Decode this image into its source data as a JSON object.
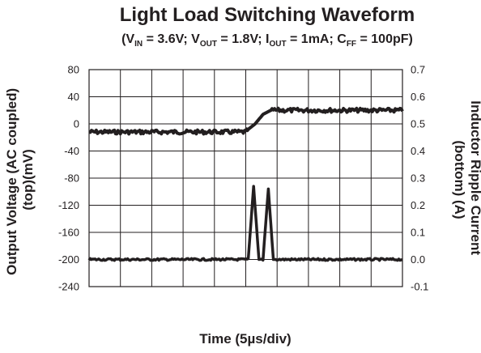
{
  "chart_data": {
    "type": "line",
    "title": "Light Load Switching Waveform",
    "subtitle": {
      "open": "(V",
      "vin_sub": "IN",
      "vin_val": " = 3.6V; V",
      "vout_sub": "OUT",
      "vout_val": " = 1.8V; I",
      "iout_sub": "OUT",
      "iout_val": " = 1mA; C",
      "cff_sub": "FF",
      "cff_val": " = 100pF)"
    },
    "xlabel": "Time (5µs/div)",
    "ylabel_left": [
      "Output Voltage (AC coupled)",
      "(top)(mV)"
    ],
    "ylabel_right": [
      "Inductor Ripple Current",
      "(bottom) (A)"
    ],
    "x_divisions": 10,
    "y_left": {
      "min": -240,
      "max": 80,
      "ticks": [
        "80",
        "40",
        "0",
        "-40",
        "-80",
        "-120",
        "-160",
        "-200",
        "-240"
      ],
      "tick_values": [
        80,
        40,
        0,
        -40,
        -80,
        -120,
        -160,
        -200,
        -240
      ]
    },
    "y_right": {
      "min": -0.1,
      "max": 0.7,
      "ticks": [
        "0.7",
        "0.6",
        "0.5",
        "0.4",
        "0.3",
        "0.2",
        "0.1",
        "0.0",
        "-0.1"
      ],
      "tick_values": [
        0.7,
        0.6,
        0.5,
        0.4,
        0.3,
        0.2,
        0.1,
        0.0,
        -0.1
      ]
    },
    "grid": true,
    "series": [
      {
        "axis": "left",
        "color": "#231f20",
        "x_div": [
          0,
          1,
          2,
          3,
          4,
          5,
          5.05,
          5.3,
          5.55,
          5.8,
          6,
          7,
          8,
          9,
          10
        ],
        "values": [
          -12,
          -12,
          -12,
          -12,
          -12,
          -12,
          -9,
          0,
          14,
          20,
          20,
          20,
          20,
          20,
          20
        ]
      },
      {
        "axis": "right",
        "color": "#231f20",
        "x_div": [
          0,
          1,
          2,
          3,
          4,
          5,
          5.08,
          5.25,
          5.42,
          5.55,
          5.72,
          5.88,
          6,
          7,
          8,
          9,
          10
        ],
        "values": [
          0.0,
          0.0,
          0.0,
          0.0,
          0.0,
          0.0,
          0.0,
          0.27,
          0.0,
          0.0,
          0.26,
          0.0,
          0.0,
          0.0,
          0.0,
          0.0,
          0.0
        ]
      }
    ]
  }
}
